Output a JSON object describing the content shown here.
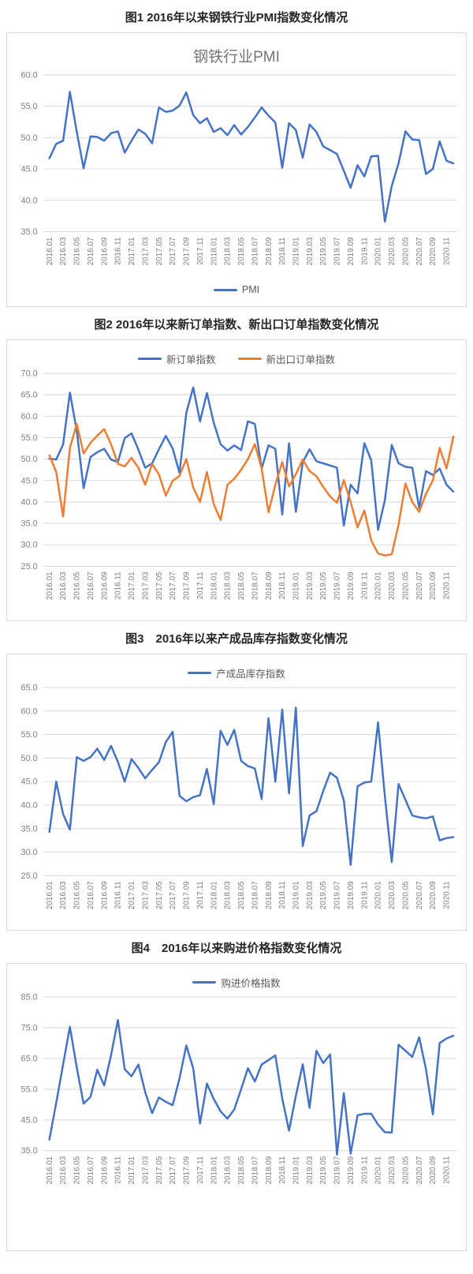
{
  "page": {
    "background": "#ffffff"
  },
  "colors": {
    "series_blue": "#4472C4",
    "series_orange": "#ED7D31",
    "gridline": "#D9D9D9",
    "axis_text": "#808080",
    "heading_text": "#262626",
    "inner_title_text": "#757575",
    "box_border": "#D9D9D9"
  },
  "figures": [
    {
      "heading": "图1 2016年以来钢铁行业PMI指数变化情况"
    },
    {
      "heading": "图2 2016年以来新订单指数、新出口订单指数变化情况"
    },
    {
      "heading": "图3　2016年以来产成品库存指数变化情况"
    },
    {
      "heading": "图4　2016年以来购进价格指数变化情况"
    }
  ],
  "x_axis": {
    "count": 60,
    "first_month": "2016.01",
    "last_month": "2020.12",
    "tick_interval": 2,
    "tick_labels": [
      "2016.01",
      "2016.03",
      "2016.05",
      "2016.07",
      "2016.09",
      "2016.11",
      "2017.01",
      "2017.03",
      "2017.05",
      "2017.07",
      "2017.09",
      "2017.11",
      "2018.01",
      "2018.03",
      "2018.05",
      "2018.07",
      "2018.09",
      "2018.11",
      "2019.01",
      "2019.03",
      "2019.05",
      "2019.07",
      "2019.09",
      "2019.11",
      "2020.01",
      "2020.03",
      "2020.05",
      "2020.07",
      "2020.09",
      "2020.11"
    ]
  },
  "chart_data": [
    {
      "type": "line",
      "title": "钢铁行业PMI",
      "legend_position": "bottom",
      "grid": true,
      "ylim": [
        35,
        60
      ],
      "ytick_step": 5,
      "series": [
        {
          "name": "PMI",
          "color": "#4472C4",
          "values": [
            46.7,
            49.0,
            49.5,
            57.3,
            50.9,
            45.1,
            50.2,
            50.1,
            49.5,
            50.7,
            51.0,
            47.6,
            49.5,
            51.3,
            50.6,
            49.1,
            54.8,
            54.1,
            54.3,
            55.1,
            57.2,
            53.6,
            52.3,
            53.1,
            50.9,
            51.5,
            50.4,
            52.0,
            50.5,
            51.7,
            53.2,
            54.8,
            53.5,
            52.4,
            45.2,
            52.3,
            51.2,
            46.8,
            52.1,
            50.9,
            48.6,
            48.0,
            47.4,
            44.7,
            42.0,
            45.6,
            43.8,
            47.0,
            47.1,
            36.6,
            42.3,
            45.9,
            51.0,
            49.7,
            49.6,
            44.2,
            45.0,
            49.4,
            46.3,
            45.9
          ]
        }
      ]
    },
    {
      "type": "line",
      "title": "",
      "legend_position": "top",
      "grid": true,
      "ylim": [
        25,
        70
      ],
      "ytick_step": 5,
      "series": [
        {
          "name": "新订单指数",
          "color": "#4472C4",
          "values": [
            50.1,
            49.9,
            53.4,
            65.5,
            56.6,
            43.2,
            50.5,
            51.6,
            52.4,
            49.9,
            49.3,
            54.9,
            56.0,
            52.2,
            48.0,
            49.0,
            52.3,
            55.4,
            52.5,
            46.8,
            60.8,
            66.7,
            58.8,
            65.4,
            58.5,
            53.5,
            52.0,
            53.2,
            52.1,
            58.8,
            58.2,
            47.8,
            53.2,
            52.4,
            37.1,
            53.7,
            37.7,
            49.3,
            52.3,
            49.5,
            49.0,
            48.5,
            48.0,
            34.5,
            44.0,
            42.0,
            53.7,
            49.7,
            33.5,
            40.4,
            53.3,
            49.0,
            48.2,
            48.0,
            38.6,
            47.2,
            46.3,
            47.8,
            44.0,
            42.4
          ]
        },
        {
          "name": "新出口订单指数",
          "color": "#ED7D31",
          "values": [
            50.9,
            47.0,
            36.6,
            52.6,
            58.2,
            51.3,
            53.8,
            55.5,
            57.0,
            53.5,
            48.9,
            48.3,
            50.3,
            48.0,
            44.0,
            48.9,
            46.4,
            41.5,
            44.9,
            46.1,
            50.0,
            43.4,
            40.0,
            47.0,
            39.5,
            35.8,
            44.0,
            45.4,
            47.5,
            50.0,
            53.5,
            47.8,
            37.6,
            44.0,
            49.3,
            43.6,
            46.5,
            49.9,
            47.2,
            46.0,
            43.5,
            41.3,
            39.8,
            45.1,
            40.0,
            34.1,
            38.0,
            31.0,
            28.0,
            27.5,
            27.8,
            34.7,
            44.3,
            40.0,
            37.7,
            41.9,
            45.0,
            52.6,
            47.8,
            55.3
          ]
        }
      ]
    },
    {
      "type": "line",
      "title": "",
      "legend_position": "top",
      "grid": true,
      "ylim": [
        25,
        65
      ],
      "ytick_step": 5,
      "series": [
        {
          "name": "产成品库存指数",
          "color": "#4472C4",
          "values": [
            34.3,
            45.0,
            38.1,
            34.8,
            50.2,
            49.4,
            50.2,
            52.0,
            49.6,
            52.6,
            49.2,
            45.0,
            49.8,
            47.9,
            45.7,
            47.5,
            49.1,
            53.4,
            55.6,
            42.0,
            40.8,
            41.7,
            42.1,
            47.7,
            40.2,
            55.8,
            52.8,
            56.0,
            49.4,
            48.3,
            47.8,
            41.3,
            58.5,
            45.0,
            60.3,
            42.5,
            60.7,
            31.3,
            37.8,
            38.7,
            43.0,
            46.9,
            45.8,
            41.0,
            27.3,
            44.0,
            44.8,
            45.0,
            57.6,
            41.9,
            27.9,
            44.5,
            41.1,
            37.8,
            37.4,
            37.2,
            37.6,
            32.5,
            33.0,
            33.2
          ]
        }
      ]
    },
    {
      "type": "line",
      "title": "",
      "legend_position": "top",
      "grid": true,
      "ylim": [
        35,
        85
      ],
      "ytick_step": 10,
      "series": [
        {
          "name": "购进价格指数",
          "color": "#4472C4",
          "values": [
            38.6,
            50.5,
            63.0,
            75.3,
            62.0,
            50.3,
            52.5,
            61.3,
            56.2,
            66.0,
            77.5,
            61.5,
            59.2,
            63.0,
            54.0,
            47.2,
            52.3,
            50.9,
            49.8,
            58.5,
            69.2,
            61.8,
            43.8,
            56.8,
            51.8,
            47.8,
            45.4,
            48.4,
            55.0,
            61.8,
            57.5,
            63.0,
            64.5,
            66.0,
            52.0,
            41.5,
            52.8,
            63.1,
            48.9,
            67.5,
            63.5,
            66.3,
            33.7,
            53.7,
            34.0,
            46.5,
            47.0,
            47.0,
            43.5,
            41.0,
            40.9,
            69.5,
            67.5,
            65.5,
            71.9,
            61.5,
            46.8,
            70.0,
            71.5,
            72.4
          ]
        }
      ]
    }
  ]
}
